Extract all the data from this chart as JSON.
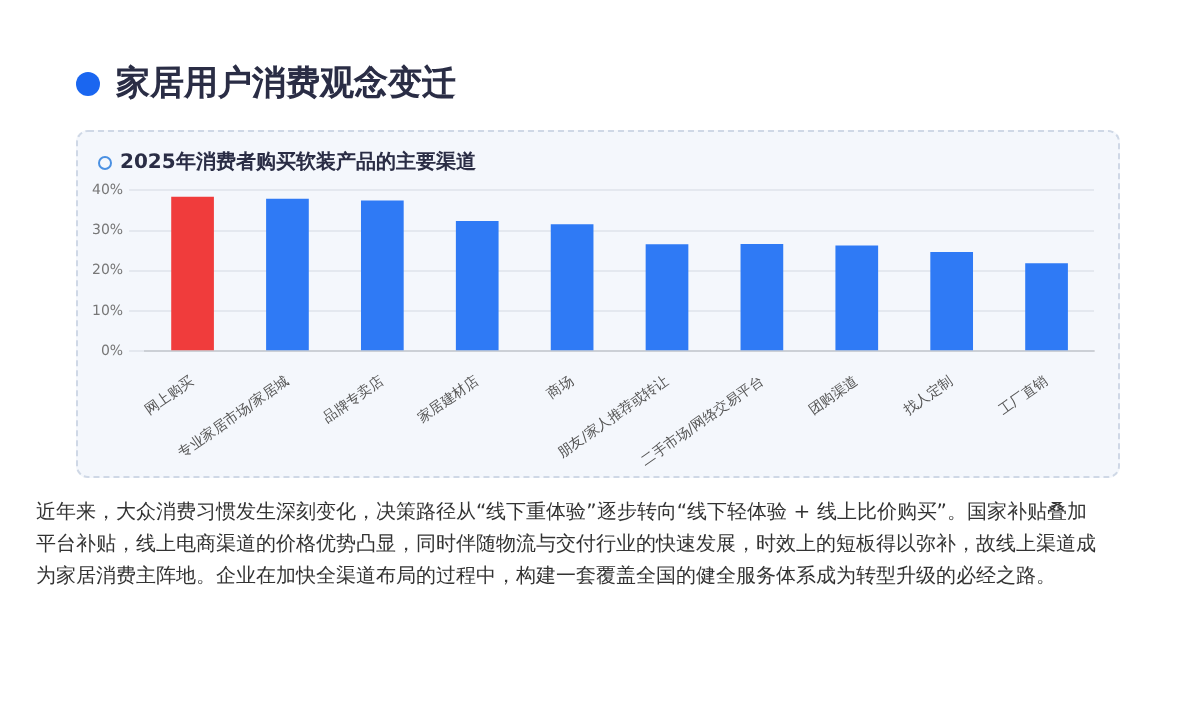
{
  "chart_data": {
    "type": "bar",
    "title": "家居用户消费观念变迁",
    "subtitle": "2025年消费者购买软装产品的主要渠道",
    "categories": [
      "网上购买",
      "专业家居市场/家居城",
      "品牌专卖店",
      "家居建材店",
      "商场",
      "朋友/家人推荐或转让",
      "二手市场/网络交易平台",
      "团购渠道",
      "找人定制",
      "工厂直销"
    ],
    "values": [
      38.4,
      37.9,
      37.5,
      32.4,
      31.6,
      26.6,
      26.7,
      26.3,
      24.7,
      21.9
    ],
    "colors": [
      "#f03c3c",
      "#2f7af5",
      "#2f7af5",
      "#2f7af5",
      "#2f7af5",
      "#2f7af5",
      "#2f7af5",
      "#2f7af5",
      "#2f7af5",
      "#2f7af5"
    ],
    "ylim": [
      0,
      40
    ],
    "yticks": [
      {
        "value": 0,
        "label": "0%"
      },
      {
        "value": 10,
        "label": "10%"
      },
      {
        "value": 20,
        "label": "20%"
      },
      {
        "value": 30,
        "label": "30%"
      },
      {
        "value": 40,
        "label": "40%"
      }
    ],
    "grid": "y",
    "annotations": [
      "近年来，大众消费习惯发生深刻变化，决策路径从“线下重体验”逐步转向“线下轻体验 + 线上比价购买”。国家补贴叠加平台补贴，线上电商渠道的价格优势凸显，同时伴随物流与交付行业的快速发展，时效上的短板得以弥补，故线上渠道成为家居消费主阵地。企业在加快全渠道布局的过程中，构建一套覆盖全国的健全服务体系成为转型升级的必经之路。"
    ]
  }
}
